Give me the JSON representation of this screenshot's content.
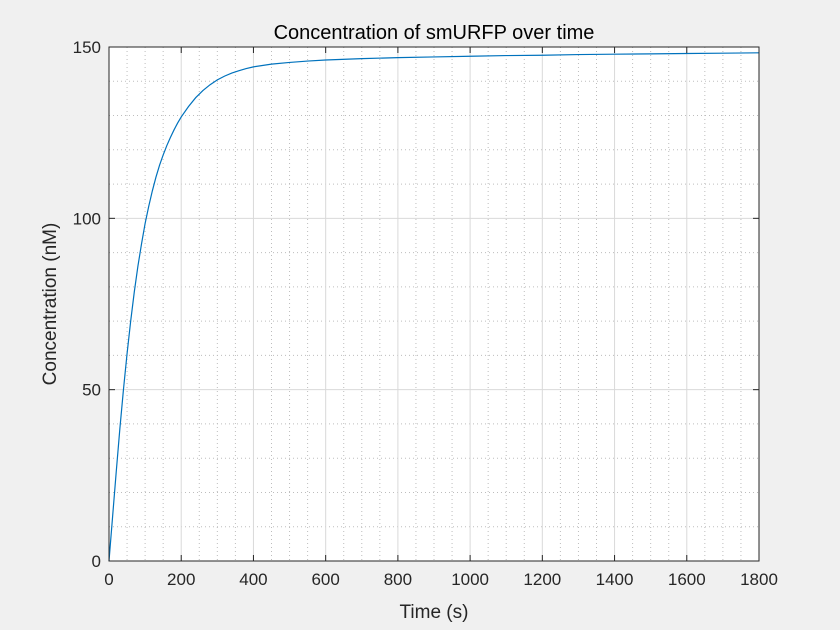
{
  "chart_data": {
    "type": "line",
    "title": "Concentration of smURFP over time",
    "xlabel": "Time (s)",
    "ylabel": "Concentration (nM)",
    "xlim": [
      0,
      1800
    ],
    "ylim": [
      0,
      150
    ],
    "x_ticks": [
      0,
      200,
      400,
      600,
      800,
      1000,
      1200,
      1400,
      1600,
      1800
    ],
    "y_ticks": [
      0,
      50,
      100,
      150
    ],
    "x_tick_labels": [
      "0",
      "200",
      "400",
      "600",
      "800",
      "1000",
      "1200",
      "1400",
      "1600",
      "1800"
    ],
    "y_tick_labels": [
      "0",
      "50",
      "100",
      "150"
    ],
    "x_minor_step": 50,
    "y_minor_step": 10,
    "grid": true,
    "minor_grid": true,
    "series": [
      {
        "color": "#0072bd",
        "x": [
          0,
          10,
          20,
          30,
          40,
          50,
          60,
          70,
          80,
          90,
          100,
          110,
          120,
          130,
          140,
          150,
          160,
          170,
          180,
          190,
          200,
          220,
          240,
          260,
          280,
          300,
          320,
          340,
          360,
          380,
          400,
          450,
          500,
          550,
          600,
          700,
          800,
          900,
          1000,
          1100,
          1200,
          1300,
          1400,
          1500,
          1600,
          1700,
          1800
        ],
        "y": [
          0,
          13,
          26,
          38.5,
          50,
          60.5,
          70,
          78.5,
          86,
          92.5,
          98.5,
          103.5,
          108,
          112,
          115.5,
          118.5,
          121.2,
          123.6,
          125.8,
          127.8,
          129.6,
          132.6,
          135.2,
          137.3,
          139,
          140.4,
          141.5,
          142.4,
          143.1,
          143.7,
          144.2,
          145,
          145.5,
          145.9,
          146.2,
          146.6,
          146.9,
          147.1,
          147.3,
          147.5,
          147.6,
          147.8,
          147.9,
          148,
          148.1,
          148.2,
          148.3
        ]
      }
    ]
  }
}
